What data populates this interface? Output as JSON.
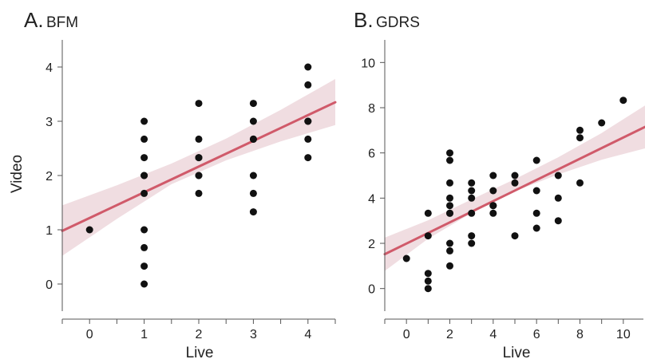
{
  "colors": {
    "points": "#111111",
    "fit_line": "#d05a6a",
    "ci_band": "#f0dde1",
    "axis": "#555555",
    "text": "#222222"
  },
  "chart_data": [
    {
      "type": "scatter",
      "panel_letter": "A.",
      "panel_name": "BFM",
      "xlabel": "Live",
      "ylabel": "Video",
      "xlim": [
        -0.5,
        4.5
      ],
      "ylim": [
        -0.5,
        4.5
      ],
      "xticks": [
        0,
        1,
        2,
        3,
        4
      ],
      "yticks": [
        0,
        1,
        2,
        3,
        4
      ],
      "points": [
        [
          0,
          1.0
        ],
        [
          1,
          3.0
        ],
        [
          1,
          2.67
        ],
        [
          1,
          2.33
        ],
        [
          1,
          2.0
        ],
        [
          1,
          2.0
        ],
        [
          1,
          1.67
        ],
        [
          1,
          1.0
        ],
        [
          1,
          0.67
        ],
        [
          1,
          0.33
        ],
        [
          1,
          0.0
        ],
        [
          2,
          3.33
        ],
        [
          2,
          2.67
        ],
        [
          2,
          2.33
        ],
        [
          2,
          2.33
        ],
        [
          2,
          2.0
        ],
        [
          2,
          2.0
        ],
        [
          2,
          1.67
        ],
        [
          3,
          3.33
        ],
        [
          3,
          3.0
        ],
        [
          3,
          2.67
        ],
        [
          3,
          2.67
        ],
        [
          3,
          2.0
        ],
        [
          3,
          1.67
        ],
        [
          3,
          1.33
        ],
        [
          4,
          4.0
        ],
        [
          4,
          3.67
        ],
        [
          4,
          3.0
        ],
        [
          4,
          3.0
        ],
        [
          4,
          2.67
        ],
        [
          4,
          2.33
        ]
      ],
      "fit": {
        "x": [
          -0.5,
          4.5
        ],
        "y": [
          0.98,
          3.35
        ]
      },
      "ci": {
        "x": [
          -0.5,
          0.5,
          1.5,
          2.5,
          3.5,
          4.5
        ],
        "lower": [
          0.52,
          1.2,
          1.84,
          2.28,
          2.63,
          2.93
        ],
        "upper": [
          1.45,
          1.82,
          2.22,
          2.68,
          3.21,
          3.78
        ]
      }
    },
    {
      "type": "scatter",
      "panel_letter": "B.",
      "panel_name": "GDRS",
      "xlabel": "Live",
      "ylabel": "",
      "xlim": [
        -1,
        11
      ],
      "ylim": [
        -1,
        11
      ],
      "xticks": [
        0,
        2,
        4,
        6,
        8,
        10
      ],
      "yticks": [
        0,
        2,
        4,
        6,
        8,
        10
      ],
      "points": [
        [
          0,
          1.33
        ],
        [
          1,
          3.33
        ],
        [
          1,
          2.33
        ],
        [
          1,
          0.67
        ],
        [
          1,
          0.33
        ],
        [
          1,
          0.0
        ],
        [
          2,
          6.0
        ],
        [
          2,
          5.67
        ],
        [
          2,
          4.67
        ],
        [
          2,
          4.0
        ],
        [
          2,
          3.67
        ],
        [
          2,
          3.33
        ],
        [
          2,
          3.33
        ],
        [
          2,
          2.0
        ],
        [
          2,
          1.67
        ],
        [
          2,
          1.0
        ],
        [
          3,
          4.67
        ],
        [
          3,
          4.33
        ],
        [
          3,
          4.0
        ],
        [
          3,
          3.33
        ],
        [
          3,
          2.33
        ],
        [
          3,
          2.0
        ],
        [
          4,
          5.0
        ],
        [
          4,
          4.33
        ],
        [
          4,
          3.67
        ],
        [
          4,
          3.67
        ],
        [
          4,
          3.33
        ],
        [
          5,
          5.0
        ],
        [
          5,
          4.67
        ],
        [
          5,
          2.33
        ],
        [
          6,
          5.67
        ],
        [
          6,
          4.33
        ],
        [
          6,
          3.33
        ],
        [
          6,
          2.67
        ],
        [
          7,
          5.0
        ],
        [
          7,
          4.0
        ],
        [
          7,
          3.0
        ],
        [
          8,
          7.0
        ],
        [
          8,
          6.67
        ],
        [
          8,
          4.67
        ],
        [
          9,
          7.33
        ],
        [
          10,
          8.33
        ]
      ],
      "fit": {
        "x": [
          -1,
          11
        ],
        "y": [
          1.52,
          7.15
        ]
      },
      "ci": {
        "x": [
          -1,
          1,
          3,
          5,
          7,
          9,
          11
        ],
        "lower": [
          0.78,
          2.2,
          3.34,
          4.3,
          5.05,
          5.7,
          6.2
        ],
        "upper": [
          2.25,
          3.02,
          3.94,
          4.84,
          5.81,
          6.88,
          8.1
        ]
      }
    }
  ]
}
